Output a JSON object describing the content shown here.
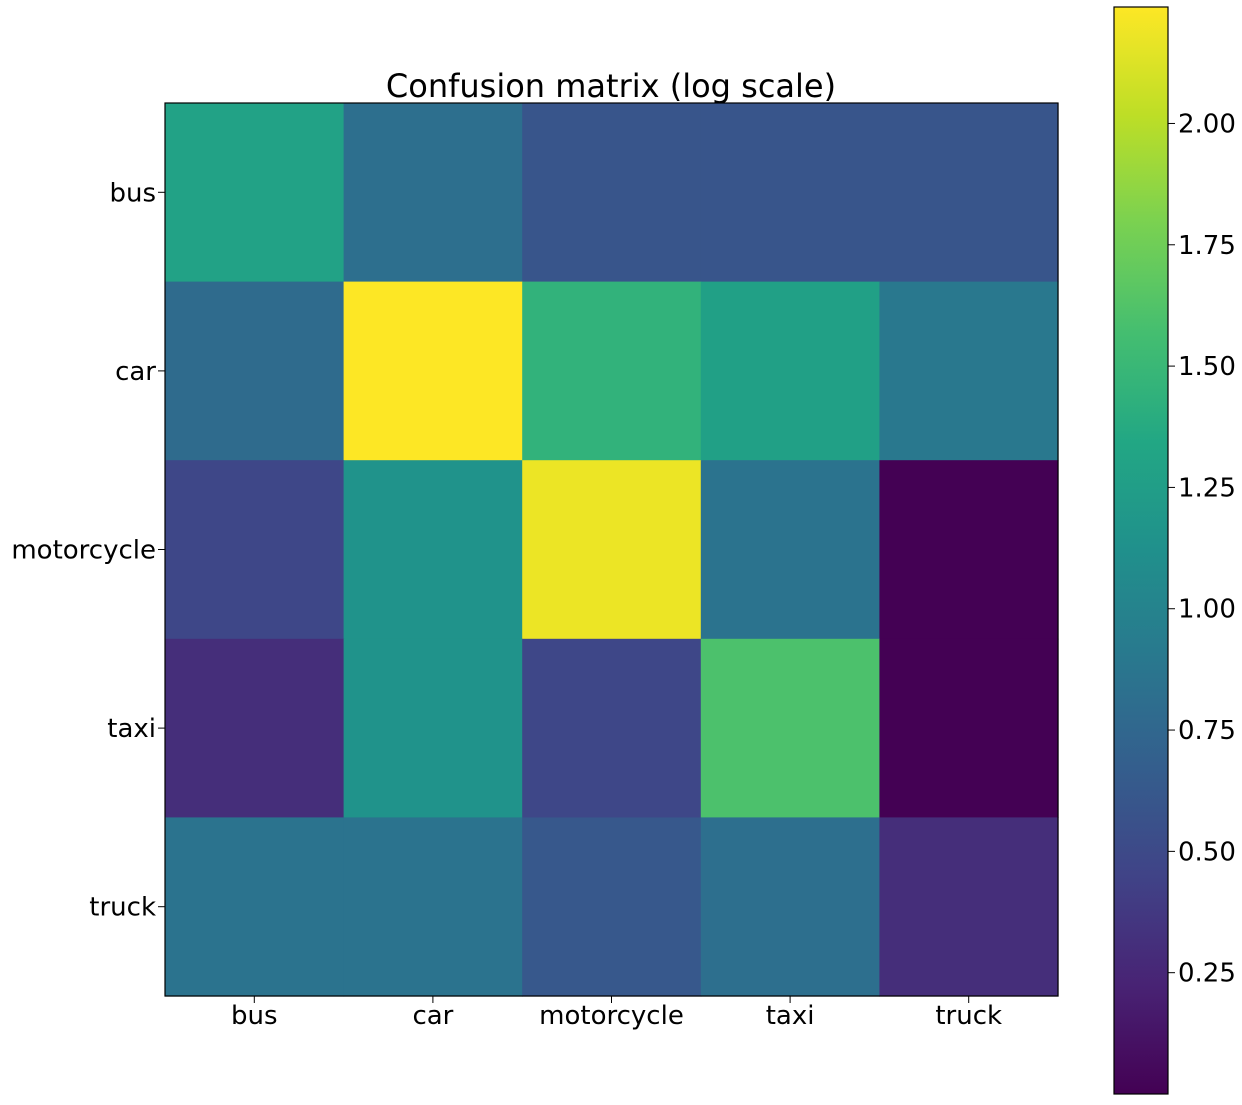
{
  "chart_data": {
    "type": "heatmap",
    "title": "Confusion matrix (log scale)",
    "xlabel": "",
    "ylabel": "",
    "x_categories": [
      "bus",
      "car",
      "motorcycle",
      "taxi",
      "truck"
    ],
    "y_categories": [
      "bus",
      "car",
      "motorcycle",
      "taxi",
      "truck"
    ],
    "values": [
      [
        1.3,
        0.82,
        0.6,
        0.6,
        0.6
      ],
      [
        0.78,
        2.24,
        1.45,
        1.28,
        0.9
      ],
      [
        0.48,
        1.15,
        2.18,
        0.85,
        0.0
      ],
      [
        0.3,
        1.15,
        0.48,
        1.6,
        0.0
      ],
      [
        0.85,
        0.85,
        0.62,
        0.82,
        0.3
      ]
    ],
    "colormap": "viridis",
    "color_range": [
      0.0,
      2.24
    ],
    "colorbar_ticks": [
      "0.25",
      "0.50",
      "0.75",
      "1.00",
      "1.25",
      "1.50",
      "1.75",
      "2.00"
    ],
    "colorbar_tick_values": [
      0.25,
      0.5,
      0.75,
      1.0,
      1.25,
      1.5,
      1.75,
      2.0
    ],
    "grid": false,
    "colorbar_position": "right"
  }
}
